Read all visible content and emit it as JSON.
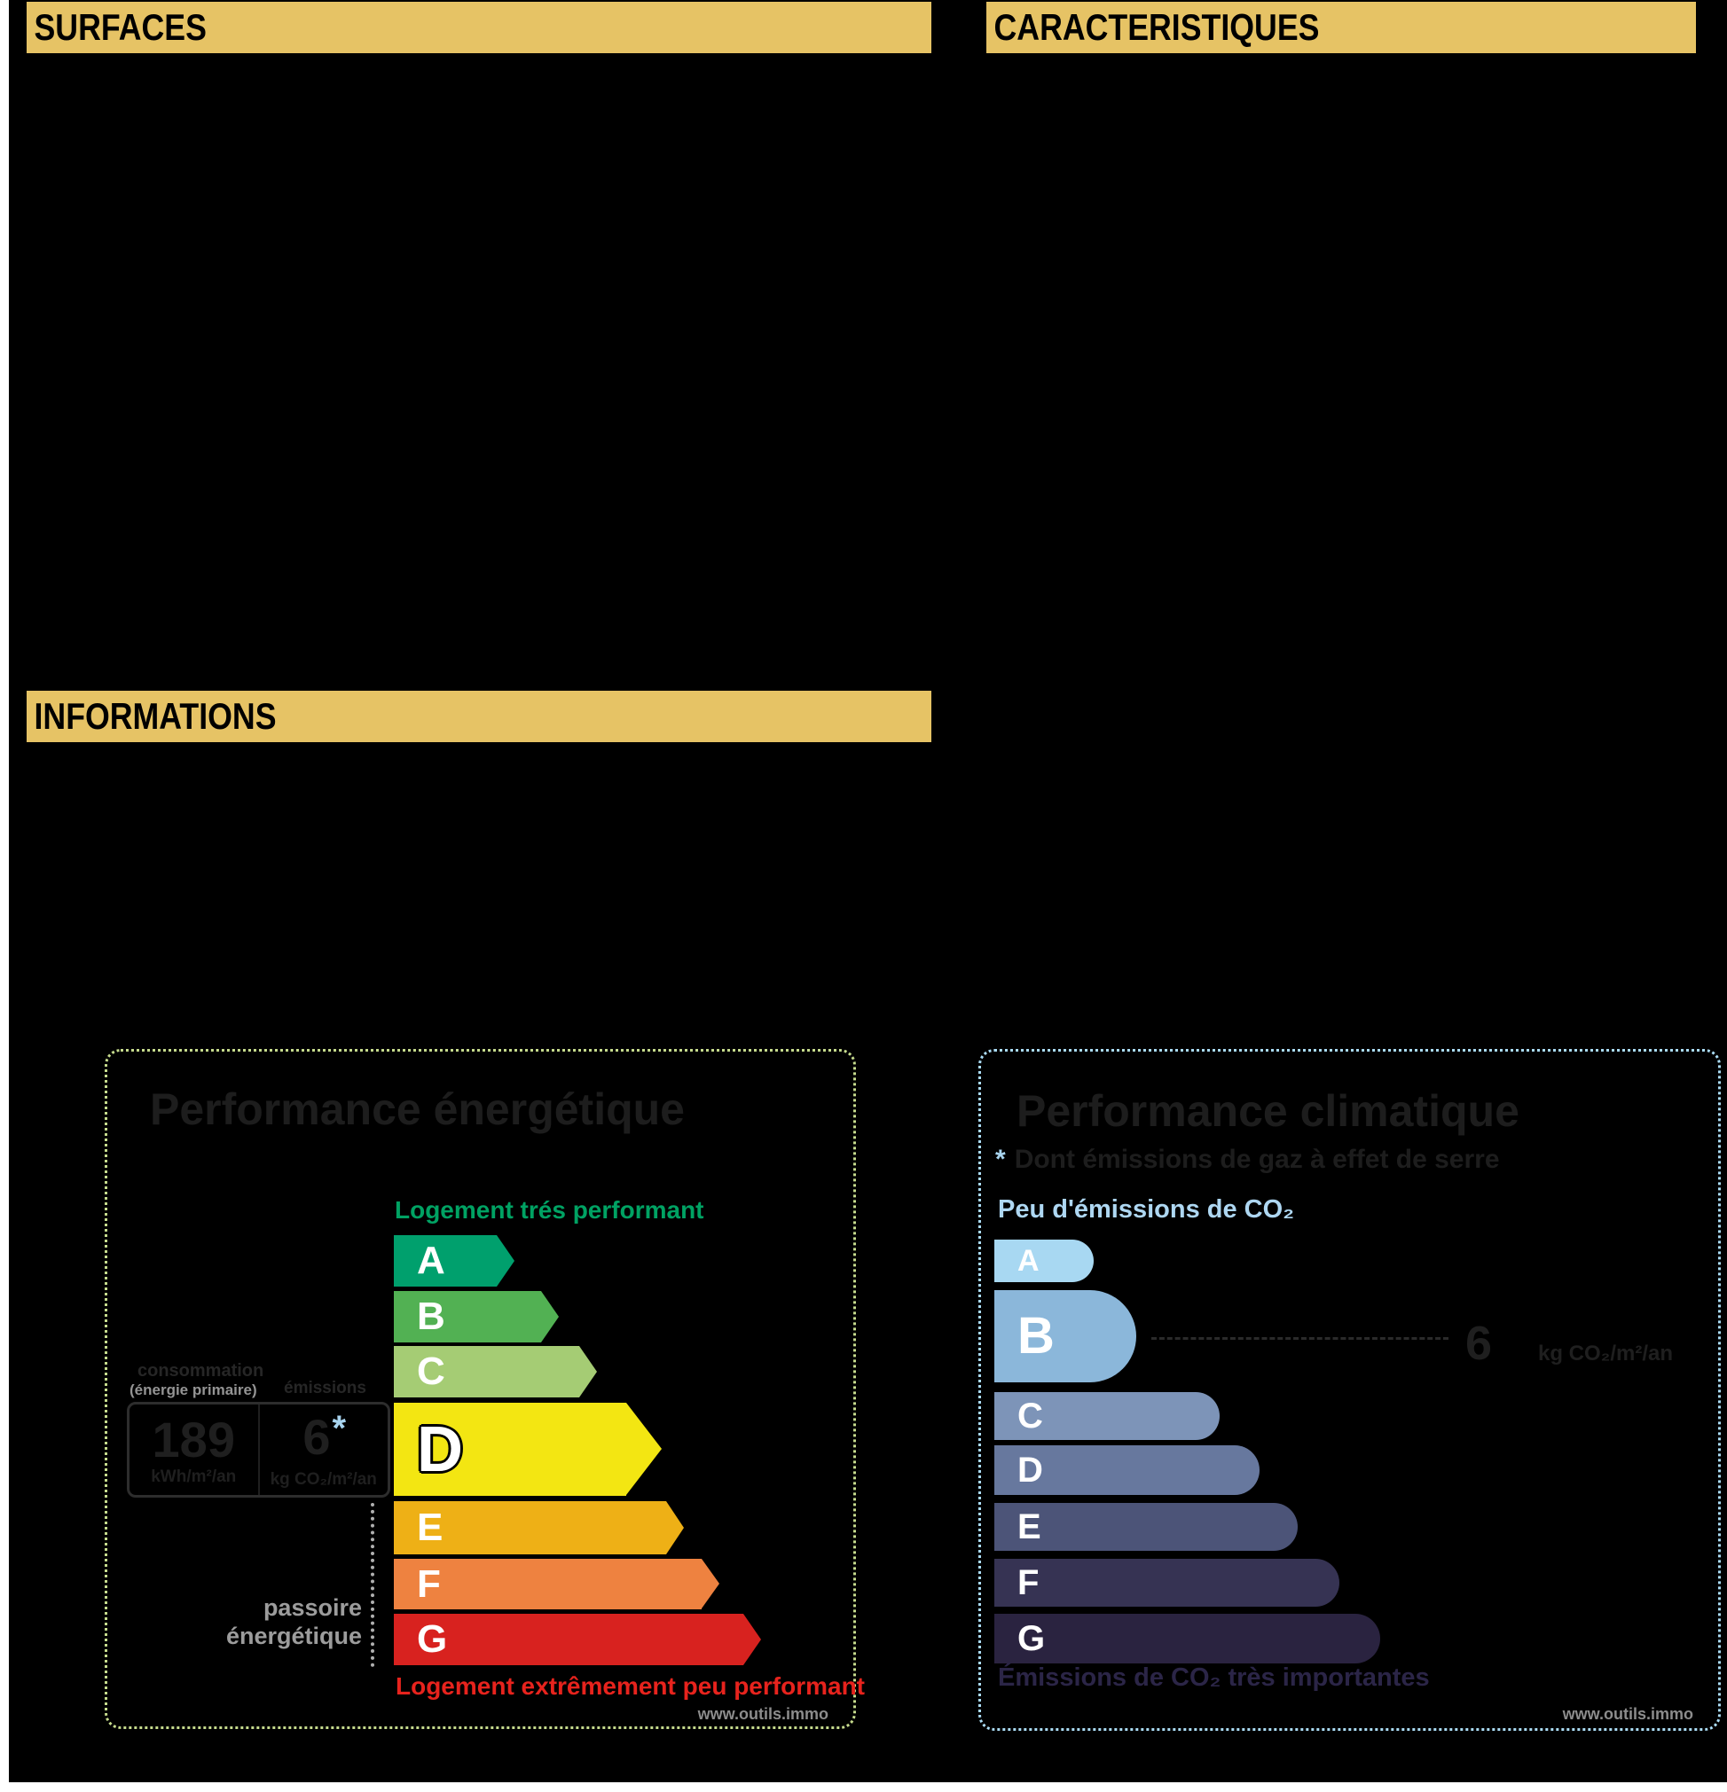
{
  "colors": {
    "page_bg": "#000000",
    "page_edge": "#ffffff",
    "header_bg": "#e6c365",
    "left_chart_border": "#c6db8d",
    "right_chart_border": "#abdcf5",
    "accent_blue": "#a8d4ef",
    "peu_label_blue": "#aed7f2",
    "green_label": "#00a263",
    "red_label": "#e7231d",
    "gray_label": "#9c9c9c",
    "gray_secondary": "#949494",
    "dark_title": "#1d1d1d",
    "dark_value": "#1f1f1f",
    "faint_label": "#262626",
    "navy_label": "#2b2547",
    "watermark_gray": "#8c8c8c",
    "value_box_border": "#2d2d2d",
    "value_box_divider": "#1f1f1f",
    "dotted_line_gray": "#b0b0b0",
    "dash_line_dark": "#2a2a2a"
  },
  "headers": {
    "surfaces": "SURFACES",
    "caracteristiques": "CARACTERISTIQUES",
    "informations": "INFORMATIONS"
  },
  "energy_chart": {
    "title": "Performance énergétique",
    "top_label": "Logement trés performant",
    "bottom_label": "Logement extrêmement peu performant",
    "selected": "D",
    "rows": [
      {
        "label": "A",
        "color": "#00a06d"
      },
      {
        "label": "B",
        "color": "#52b153"
      },
      {
        "label": "C",
        "color": "#a5cc74"
      },
      {
        "label": "D",
        "color": "#f3e612"
      },
      {
        "label": "E",
        "color": "#eeb016"
      },
      {
        "label": "F",
        "color": "#ee8240"
      },
      {
        "label": "G",
        "color": "#d8221f"
      }
    ],
    "value_box": {
      "label_line1": "consommation",
      "label_line2": "(énergie primaire)",
      "label_emissions": "émissions",
      "consumption_value": "189",
      "consumption_unit": "kWh/m²/an",
      "emission_value": "6",
      "emission_star": "*",
      "emission_unit": "kg CO₂/m²/an"
    },
    "sink_label_line1": "passoire",
    "sink_label_line2": "énergétique",
    "watermark": "www.outils.immo"
  },
  "climate_chart": {
    "title": "Performance climatique",
    "subtitle_star": "*",
    "subtitle_text": "Dont émissions de gaz à effet de serre",
    "top_label": "Peu d'émissions de CO₂",
    "bottom_label": "Émissions de CO₂ très importantes",
    "selected": "B",
    "value": "6",
    "value_unit": "kg CO₂/m²/an",
    "rows": [
      {
        "label": "A",
        "color": "#a8d8f2"
      },
      {
        "label": "B",
        "color": "#8bb7da"
      },
      {
        "label": "C",
        "color": "#7d94b8"
      },
      {
        "label": "D",
        "color": "#67789e"
      },
      {
        "label": "E",
        "color": "#4c5478"
      },
      {
        "label": "F",
        "color": "#363353"
      },
      {
        "label": "G",
        "color": "#2a2340"
      }
    ],
    "watermark": "www.outils.immo"
  },
  "chart_data": [
    {
      "type": "bar",
      "title": "Performance énergétique",
      "orientation": "horizontal",
      "categories": [
        "A",
        "B",
        "C",
        "D",
        "E",
        "F",
        "G"
      ],
      "series": [
        {
          "name": "bar_length_px",
          "values": [
            134,
            186,
            229,
            302,
            327,
            367,
            414
          ]
        }
      ],
      "highlight": "D",
      "value": 189,
      "value_unit": "kWh/m²/an",
      "secondary_value": 6,
      "secondary_unit": "kg CO₂/m²/an",
      "annotations": [
        "Logement trés performant",
        "Logement extrêmement peu performant",
        "passoire énergétique",
        "consommation (énergie primaire)",
        "émissions"
      ],
      "legend_position": "none",
      "grid": false
    },
    {
      "type": "bar",
      "title": "Performance climatique",
      "orientation": "horizontal",
      "categories": [
        "A",
        "B",
        "C",
        "D",
        "E",
        "F",
        "G"
      ],
      "series": [
        {
          "name": "bar_length_px",
          "values": [
            112,
            160,
            254,
            299,
            342,
            389,
            435
          ]
        }
      ],
      "highlight": "B",
      "value": 6,
      "value_unit": "kg CO₂/m²/an",
      "annotations": [
        "* Dont émissions de gaz à effet de serre",
        "Peu d'émissions de CO₂",
        "Émissions de CO₂ très importantes"
      ],
      "legend_position": "none",
      "grid": false
    }
  ]
}
